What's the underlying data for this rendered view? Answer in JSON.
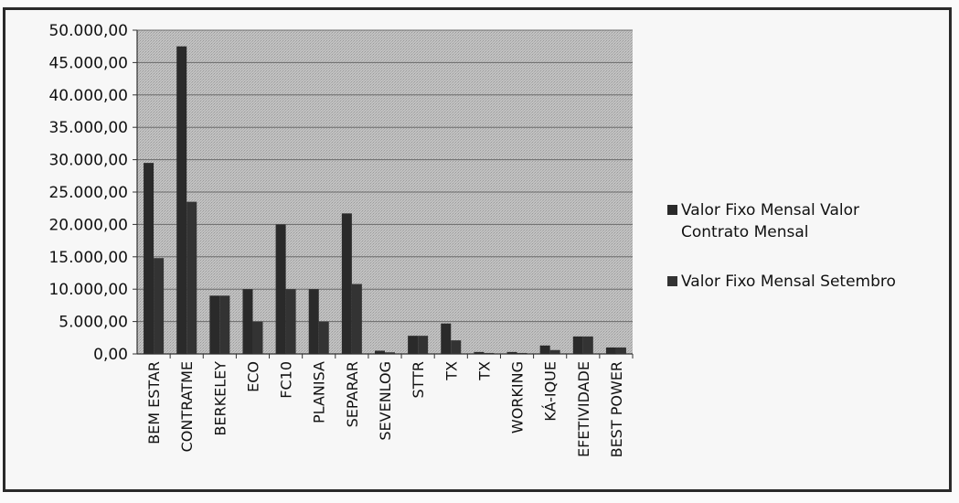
{
  "chart_data": {
    "type": "bar",
    "title": "",
    "xlabel": "",
    "ylabel": "",
    "ylim": [
      0,
      50000
    ],
    "y_ticks": [
      "0,00",
      "5.000,00",
      "10.000,00",
      "15.000,00",
      "20.000,00",
      "25.000,00",
      "30.000,00",
      "35.000,00",
      "40.000,00",
      "45.000,00",
      "50.000,00"
    ],
    "categories": [
      "BEM ESTAR",
      "CONTRATME",
      "BERKELEY",
      "ECO",
      "FC10",
      "PLANISA",
      "SEPARAR",
      "SEVENLOG",
      "STTR",
      "TX",
      "TX",
      "WORKING",
      "KÁ-IQUE",
      "EFETIVIDADE",
      "BEST POWER"
    ],
    "series": [
      {
        "name": "Valor Fixo Mensal Valor Contrato Mensal",
        "values": [
          29500,
          47500,
          9000,
          10000,
          20000,
          10000,
          21700,
          500,
          2800,
          4700,
          300,
          300,
          1300,
          2700,
          1000
        ]
      },
      {
        "name": "Valor Fixo Mensal Setembro",
        "values": [
          14800,
          23500,
          9000,
          5000,
          10000,
          5000,
          10800,
          250,
          2800,
          2100,
          150,
          150,
          600,
          2700,
          1000
        ]
      }
    ],
    "grid": true,
    "legend_position": "right",
    "colors": {
      "series1": "#2a2a2a",
      "series2": "#333333",
      "plot_area": "#bdbdbd",
      "grid": "#6a6a6a"
    }
  }
}
